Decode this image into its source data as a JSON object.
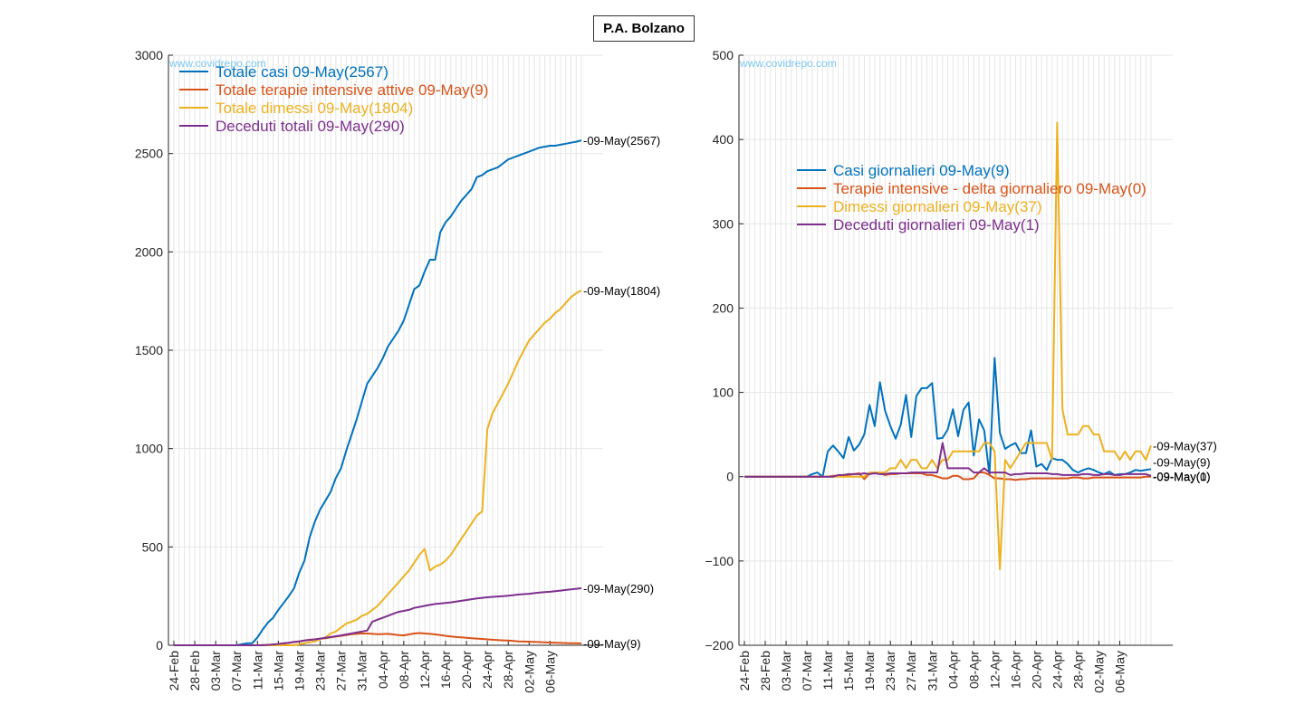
{
  "figure": {
    "title": "P.A. Bolzano"
  },
  "chart_data": [
    {
      "type": "line",
      "watermark": "www.covidrepo.com",
      "xlabels": [
        "24-Feb",
        "28-Feb",
        "03-Mar",
        "07-Mar",
        "11-Mar",
        "15-Mar",
        "19-Mar",
        "23-Mar",
        "27-Mar",
        "31-Mar",
        "04-Apr",
        "08-Apr",
        "12-Apr",
        "16-Apr",
        "20-Apr",
        "24-Apr",
        "28-Apr",
        "02-May",
        "06-May"
      ],
      "ylim": [
        0,
        3000
      ],
      "yticks": [
        "0",
        "500",
        "1000",
        "1500",
        "2000",
        "2500",
        "3000"
      ],
      "grid": true,
      "legend_position": "top-left",
      "series": [
        {
          "name": "Totale casi 09-May(2567)",
          "color": "#0072BD",
          "end_label": "-09-May(2567)",
          "values": [
            0,
            0,
            0,
            0,
            0,
            0,
            0,
            0,
            0,
            0,
            0,
            0,
            0,
            5,
            10,
            10,
            40,
            80,
            115,
            140,
            180,
            215,
            250,
            290,
            370,
            430,
            550,
            630,
            690,
            735,
            780,
            850,
            900,
            990,
            1070,
            1150,
            1240,
            1330,
            1370,
            1410,
            1460,
            1520,
            1560,
            1600,
            1650,
            1730,
            1810,
            1830,
            1900,
            1960,
            1960,
            2100,
            2150,
            2180,
            2220,
            2260,
            2290,
            2320,
            2380,
            2390,
            2410,
            2420,
            2430,
            2450,
            2470,
            2480,
            2490,
            2500,
            2510,
            2520,
            2530,
            2535,
            2540,
            2540,
            2545,
            2550,
            2555,
            2560,
            2567
          ]
        },
        {
          "name": "Totale terapie intensive attive 09-May(9)",
          "color": "#D95319",
          "end_label": "-09-May(9)",
          "values": [
            0,
            0,
            0,
            0,
            0,
            0,
            0,
            0,
            0,
            0,
            0,
            0,
            0,
            0,
            0,
            0,
            0,
            1,
            2,
            3,
            5,
            8,
            12,
            16,
            20,
            24,
            28,
            30,
            33,
            36,
            40,
            44,
            48,
            52,
            56,
            58,
            60,
            60,
            58,
            56,
            57,
            58,
            55,
            52,
            50,
            55,
            60,
            62,
            60,
            58,
            55,
            52,
            48,
            45,
            42,
            40,
            38,
            36,
            34,
            32,
            30,
            28,
            26,
            25,
            24,
            22,
            20,
            19,
            18,
            17,
            16,
            15,
            14,
            13,
            12,
            11,
            10,
            10,
            9
          ]
        },
        {
          "name": "Totale dimessi 09-May(1804)",
          "color": "#EDB120",
          "end_label": "-09-May(1804)",
          "values": [
            0,
            0,
            0,
            0,
            0,
            0,
            0,
            0,
            0,
            0,
            0,
            0,
            0,
            0,
            0,
            0,
            0,
            0,
            0,
            0,
            0,
            0,
            0,
            0,
            5,
            10,
            15,
            20,
            30,
            40,
            60,
            70,
            90,
            110,
            120,
            130,
            150,
            160,
            180,
            200,
            230,
            260,
            290,
            320,
            350,
            380,
            420,
            460,
            490,
            380,
            400,
            410,
            430,
            460,
            500,
            540,
            580,
            620,
            660,
            680,
            1100,
            1180,
            1230,
            1280,
            1330,
            1390,
            1450,
            1500,
            1550,
            1580,
            1610,
            1640,
            1660,
            1690,
            1710,
            1740,
            1770,
            1790,
            1804
          ]
        },
        {
          "name": "Deceduti totali 09-May(290)",
          "color": "#7E2F8E",
          "end_label": "-09-May(290)",
          "values": [
            0,
            0,
            0,
            0,
            0,
            0,
            0,
            0,
            0,
            0,
            0,
            0,
            0,
            0,
            0,
            0,
            0,
            0,
            2,
            4,
            7,
            10,
            13,
            17,
            20,
            24,
            27,
            30,
            34,
            38,
            42,
            46,
            50,
            55,
            60,
            65,
            70,
            75,
            120,
            130,
            140,
            150,
            160,
            170,
            175,
            180,
            190,
            195,
            200,
            205,
            210,
            212,
            215,
            218,
            222,
            226,
            230,
            234,
            238,
            241,
            244,
            246,
            248,
            250,
            252,
            255,
            258,
            260,
            262,
            265,
            268,
            270,
            272,
            275,
            278,
            281,
            284,
            287,
            290
          ]
        }
      ]
    },
    {
      "type": "line",
      "watermark": "www.covidrepo.com",
      "xlabels": [
        "24-Feb",
        "28-Feb",
        "03-Mar",
        "07-Mar",
        "11-Mar",
        "15-Mar",
        "19-Mar",
        "23-Mar",
        "27-Mar",
        "31-Mar",
        "04-Apr",
        "08-Apr",
        "12-Apr",
        "16-Apr",
        "20-Apr",
        "24-Apr",
        "28-Apr",
        "02-May",
        "06-May"
      ],
      "ylim": [
        -200,
        500
      ],
      "yticks": [
        "−200",
        "−100",
        "0",
        "100",
        "200",
        "300",
        "400",
        "500"
      ],
      "grid": true,
      "legend_position": "center-right",
      "series": [
        {
          "name": "Casi giornalieri 09-May(9)",
          "color": "#0072BD",
          "end_label": "-09-May(9)",
          "values": [
            0,
            0,
            0,
            0,
            0,
            0,
            0,
            0,
            0,
            0,
            0,
            0,
            0,
            3,
            5,
            0,
            30,
            37,
            30,
            22,
            47,
            31,
            38,
            50,
            85,
            60,
            112,
            78,
            60,
            45,
            62,
            97,
            47,
            96,
            105,
            105,
            111,
            45,
            46,
            56,
            80,
            48,
            79,
            88,
            25,
            68,
            55,
            2,
            141,
            52,
            33,
            37,
            40,
            28,
            28,
            55,
            12,
            15,
            8,
            22,
            20,
            20,
            15,
            8,
            5,
            8,
            10,
            8,
            5,
            3,
            6,
            2,
            3,
            3,
            5,
            8,
            7,
            8,
            9
          ]
        },
        {
          "name": "Terapie intensive - delta giornaliero 09-May(0)",
          "color": "#D95319",
          "end_label": "-09-May(0)",
          "values": [
            0,
            0,
            0,
            0,
            0,
            0,
            0,
            0,
            0,
            0,
            0,
            0,
            0,
            0,
            0,
            0,
            0,
            1,
            1,
            1,
            2,
            3,
            4,
            -3,
            4,
            4,
            4,
            2,
            3,
            3,
            4,
            4,
            4,
            4,
            4,
            2,
            2,
            0,
            -2,
            -2,
            1,
            1,
            -3,
            -3,
            -2,
            5,
            5,
            2,
            -2,
            -2,
            -3,
            -3,
            -4,
            -3,
            -3,
            -2,
            -2,
            -2,
            -2,
            -2,
            -2,
            -2,
            -2,
            -1,
            -1,
            -2,
            -2,
            -1,
            -1,
            -1,
            -1,
            -1,
            -1,
            -1,
            -1,
            -1,
            -1,
            0,
            0
          ]
        },
        {
          "name": "Dimessi giornalieri 09-May(37)",
          "color": "#EDB120",
          "end_label": "-09-May(37)",
          "values": [
            0,
            0,
            0,
            0,
            0,
            0,
            0,
            0,
            0,
            0,
            0,
            0,
            0,
            0,
            0,
            0,
            0,
            0,
            0,
            0,
            0,
            0,
            0,
            0,
            5,
            5,
            5,
            5,
            10,
            10,
            20,
            10,
            20,
            20,
            10,
            10,
            20,
            10,
            20,
            20,
            30,
            30,
            30,
            30,
            30,
            30,
            40,
            40,
            30,
            -110,
            20,
            10,
            20,
            30,
            40,
            40,
            40,
            40,
            40,
            20,
            420,
            80,
            50,
            50,
            50,
            60,
            60,
            50,
            50,
            30,
            30,
            30,
            20,
            30,
            20,
            30,
            30,
            20,
            37
          ]
        },
        {
          "name": "Deceduti giornalieri 09-May(1)",
          "color": "#7E2F8E",
          "end_label": "-09-May(1)",
          "values": [
            0,
            0,
            0,
            0,
            0,
            0,
            0,
            0,
            0,
            0,
            0,
            0,
            0,
            0,
            0,
            0,
            0,
            0,
            2,
            2,
            3,
            3,
            3,
            4,
            3,
            4,
            3,
            3,
            4,
            4,
            4,
            4,
            5,
            5,
            5,
            5,
            5,
            5,
            40,
            10,
            10,
            10,
            10,
            10,
            5,
            5,
            10,
            5,
            5,
            5,
            5,
            2,
            3,
            3,
            4,
            4,
            4,
            4,
            4,
            3,
            3,
            2,
            2,
            2,
            2,
            3,
            3,
            2,
            2,
            3,
            3,
            2,
            2,
            3,
            3,
            3,
            3,
            3,
            1
          ]
        }
      ]
    }
  ]
}
